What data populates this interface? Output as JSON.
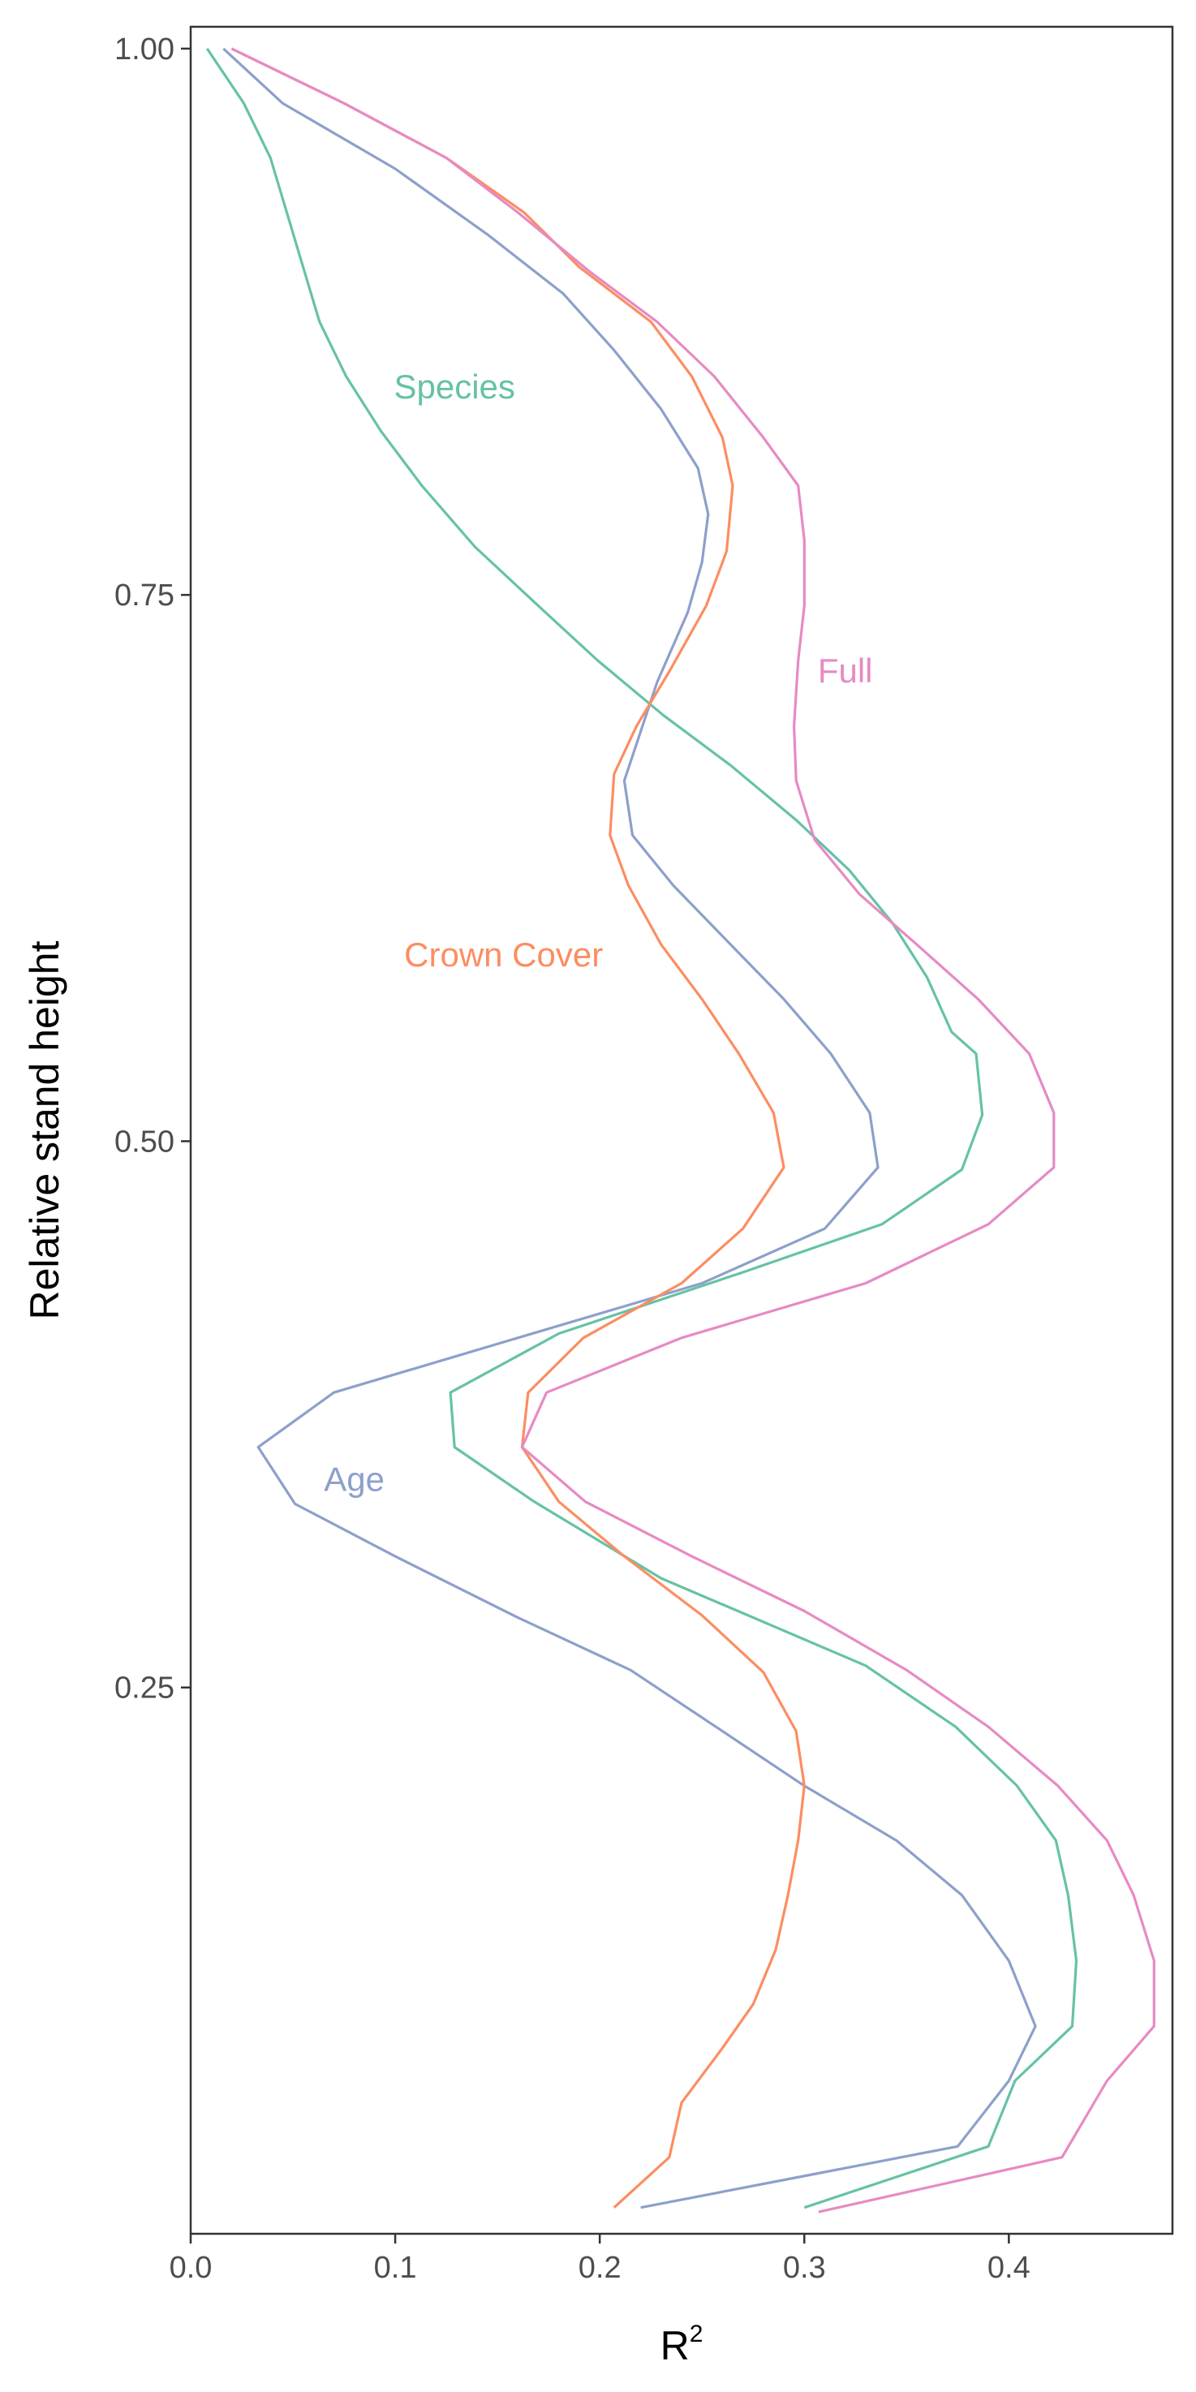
{
  "chart_data": {
    "type": "line",
    "xlabel": "R",
    "xlabel_superscript": "2",
    "ylabel": "Relative stand height",
    "xlim": [
      0.0,
      0.48
    ],
    "ylim": [
      0.0,
      1.01
    ],
    "x_ticks": [
      {
        "value": 0.0,
        "label": "0.0"
      },
      {
        "value": 0.1,
        "label": "0.1"
      },
      {
        "value": 0.2,
        "label": "0.2"
      },
      {
        "value": 0.3,
        "label": "0.3"
      },
      {
        "value": 0.4,
        "label": "0.4"
      }
    ],
    "y_ticks": [
      {
        "value": 0.25,
        "label": "0.25"
      },
      {
        "value": 0.5,
        "label": "0.50"
      },
      {
        "value": 0.75,
        "label": "0.75"
      },
      {
        "value": 1.0,
        "label": "1.00"
      }
    ],
    "grid": false,
    "legend": "none",
    "series": [
      {
        "name": "Species",
        "color": "#66c2a5",
        "label_at": {
          "x": 0.129,
          "y": 0.84
        },
        "points": [
          [
            0.008,
            1.0
          ],
          [
            0.026,
            0.975
          ],
          [
            0.039,
            0.95
          ],
          [
            0.047,
            0.925
          ],
          [
            0.055,
            0.9
          ],
          [
            0.063,
            0.875
          ],
          [
            0.076,
            0.85
          ],
          [
            0.093,
            0.825
          ],
          [
            0.113,
            0.8
          ],
          [
            0.139,
            0.772
          ],
          [
            0.17,
            0.745
          ],
          [
            0.199,
            0.72
          ],
          [
            0.231,
            0.695
          ],
          [
            0.264,
            0.672
          ],
          [
            0.296,
            0.647
          ],
          [
            0.322,
            0.624
          ],
          [
            0.343,
            0.6
          ],
          [
            0.36,
            0.575
          ],
          [
            0.372,
            0.55
          ],
          [
            0.384,
            0.54
          ],
          [
            0.387,
            0.512
          ],
          [
            0.377,
            0.487
          ],
          [
            0.338,
            0.462
          ],
          [
            0.27,
            0.44
          ],
          [
            0.18,
            0.412
          ],
          [
            0.127,
            0.385
          ],
          [
            0.129,
            0.36
          ],
          [
            0.168,
            0.335
          ],
          [
            0.23,
            0.3
          ],
          [
            0.33,
            0.26
          ],
          [
            0.374,
            0.232
          ],
          [
            0.404,
            0.205
          ],
          [
            0.423,
            0.18
          ],
          [
            0.429,
            0.155
          ],
          [
            0.433,
            0.125
          ],
          [
            0.431,
            0.095
          ],
          [
            0.403,
            0.07
          ],
          [
            0.39,
            0.04
          ],
          [
            0.3,
            0.012
          ]
        ]
      },
      {
        "name": "Age",
        "color": "#8da0cb",
        "label_at": {
          "x": 0.08,
          "y": 0.34
        },
        "points": [
          [
            0.016,
            1.0
          ],
          [
            0.045,
            0.975
          ],
          [
            0.1,
            0.945
          ],
          [
            0.145,
            0.915
          ],
          [
            0.182,
            0.888
          ],
          [
            0.207,
            0.862
          ],
          [
            0.23,
            0.835
          ],
          [
            0.248,
            0.808
          ],
          [
            0.253,
            0.787
          ],
          [
            0.25,
            0.765
          ],
          [
            0.243,
            0.742
          ],
          [
            0.228,
            0.71
          ],
          [
            0.212,
            0.665
          ],
          [
            0.216,
            0.64
          ],
          [
            0.236,
            0.617
          ],
          [
            0.264,
            0.59
          ],
          [
            0.29,
            0.565
          ],
          [
            0.313,
            0.54
          ],
          [
            0.332,
            0.513
          ],
          [
            0.336,
            0.488
          ],
          [
            0.31,
            0.46
          ],
          [
            0.25,
            0.435
          ],
          [
            0.16,
            0.41
          ],
          [
            0.07,
            0.385
          ],
          [
            0.033,
            0.36
          ],
          [
            0.051,
            0.334
          ],
          [
            0.1,
            0.31
          ],
          [
            0.16,
            0.282
          ],
          [
            0.215,
            0.258
          ],
          [
            0.26,
            0.23
          ],
          [
            0.3,
            0.205
          ],
          [
            0.345,
            0.18
          ],
          [
            0.377,
            0.155
          ],
          [
            0.4,
            0.125
          ],
          [
            0.413,
            0.095
          ],
          [
            0.4,
            0.07
          ],
          [
            0.375,
            0.04
          ],
          [
            0.22,
            0.012
          ]
        ]
      },
      {
        "name": "Crown Cover",
        "color": "#fc8d62",
        "label_at": {
          "x": 0.153,
          "y": 0.58
        },
        "points": [
          [
            0.02,
            1.0
          ],
          [
            0.075,
            0.975
          ],
          [
            0.125,
            0.95
          ],
          [
            0.163,
            0.925
          ],
          [
            0.19,
            0.9
          ],
          [
            0.225,
            0.875
          ],
          [
            0.245,
            0.85
          ],
          [
            0.26,
            0.822
          ],
          [
            0.265,
            0.8
          ],
          [
            0.262,
            0.77
          ],
          [
            0.252,
            0.745
          ],
          [
            0.234,
            0.715
          ],
          [
            0.218,
            0.69
          ],
          [
            0.207,
            0.668
          ],
          [
            0.205,
            0.64
          ],
          [
            0.214,
            0.617
          ],
          [
            0.23,
            0.59
          ],
          [
            0.25,
            0.565
          ],
          [
            0.268,
            0.54
          ],
          [
            0.285,
            0.513
          ],
          [
            0.29,
            0.488
          ],
          [
            0.27,
            0.46
          ],
          [
            0.24,
            0.435
          ],
          [
            0.192,
            0.41
          ],
          [
            0.165,
            0.385
          ],
          [
            0.162,
            0.36
          ],
          [
            0.18,
            0.335
          ],
          [
            0.212,
            0.31
          ],
          [
            0.25,
            0.283
          ],
          [
            0.28,
            0.257
          ],
          [
            0.296,
            0.23
          ],
          [
            0.3,
            0.205
          ],
          [
            0.297,
            0.18
          ],
          [
            0.292,
            0.155
          ],
          [
            0.286,
            0.13
          ],
          [
            0.275,
            0.105
          ],
          [
            0.26,
            0.085
          ],
          [
            0.24,
            0.06
          ],
          [
            0.234,
            0.035
          ],
          [
            0.207,
            0.012
          ]
        ]
      },
      {
        "name": "Full",
        "color": "#e78ac3",
        "label_at": {
          "x": 0.32,
          "y": 0.71
        },
        "points": [
          [
            0.02,
            1.0
          ],
          [
            0.075,
            0.975
          ],
          [
            0.125,
            0.95
          ],
          [
            0.16,
            0.925
          ],
          [
            0.195,
            0.898
          ],
          [
            0.228,
            0.875
          ],
          [
            0.256,
            0.85
          ],
          [
            0.28,
            0.822
          ],
          [
            0.297,
            0.8
          ],
          [
            0.3,
            0.775
          ],
          [
            0.3,
            0.745
          ],
          [
            0.297,
            0.72
          ],
          [
            0.295,
            0.69
          ],
          [
            0.296,
            0.665
          ],
          [
            0.305,
            0.638
          ],
          [
            0.327,
            0.613
          ],
          [
            0.355,
            0.59
          ],
          [
            0.385,
            0.565
          ],
          [
            0.41,
            0.54
          ],
          [
            0.422,
            0.513
          ],
          [
            0.422,
            0.488
          ],
          [
            0.39,
            0.462
          ],
          [
            0.33,
            0.435
          ],
          [
            0.24,
            0.41
          ],
          [
            0.174,
            0.385
          ],
          [
            0.162,
            0.36
          ],
          [
            0.193,
            0.335
          ],
          [
            0.245,
            0.31
          ],
          [
            0.3,
            0.285
          ],
          [
            0.35,
            0.258
          ],
          [
            0.39,
            0.232
          ],
          [
            0.424,
            0.205
          ],
          [
            0.448,
            0.18
          ],
          [
            0.461,
            0.155
          ],
          [
            0.471,
            0.125
          ],
          [
            0.471,
            0.095
          ],
          [
            0.448,
            0.07
          ],
          [
            0.426,
            0.035
          ],
          [
            0.307,
            0.01
          ]
        ]
      }
    ]
  }
}
